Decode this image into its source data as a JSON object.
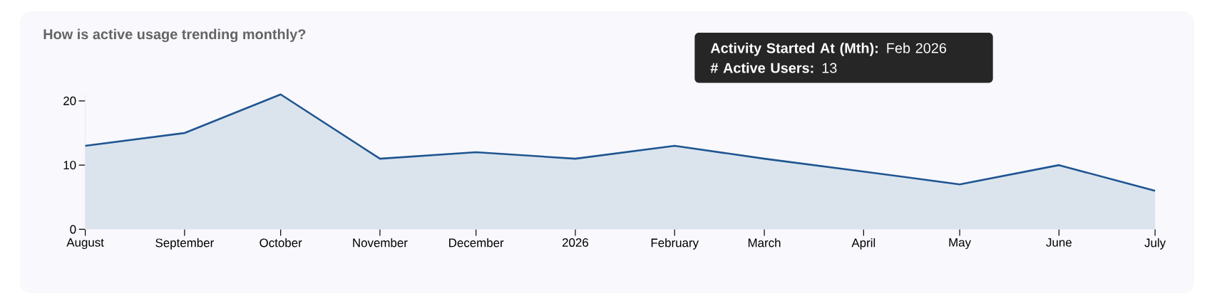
{
  "chart_data": {
    "type": "area",
    "title": "How is active usage trending monthly?",
    "x": [
      "2025-08",
      "2025-09",
      "2025-10",
      "2025-11",
      "2025-12",
      "2026-01",
      "2026-02",
      "2026-03",
      "2026-04",
      "2026-05",
      "2026-06",
      "2026-07"
    ],
    "series": [
      {
        "color": "#1f5591",
        "values": [
          13,
          15,
          21,
          11,
          12,
          11,
          13,
          11,
          9,
          7,
          10,
          6
        ]
      }
    ],
    "xlim": [
      "2025-08",
      "2026-07"
    ],
    "xticks": [
      {
        "value": "2025-08",
        "label": "August"
      },
      {
        "value": "2025-09",
        "label": "September"
      },
      {
        "value": "2025-10",
        "label": "October"
      },
      {
        "value": "2025-11",
        "label": "November"
      },
      {
        "value": "2025-12",
        "label": "December"
      },
      {
        "value": "2026-01",
        "label": "2026"
      },
      {
        "value": "2026-02",
        "label": "February"
      },
      {
        "value": "2026-03",
        "label": "March"
      },
      {
        "value": "2026-04",
        "label": "April"
      },
      {
        "value": "2026-05",
        "label": "May"
      },
      {
        "value": "2026-06",
        "label": "June"
      },
      {
        "value": "2026-07",
        "label": "July"
      }
    ],
    "ylim": [
      0,
      21
    ],
    "yticks": [
      0,
      10,
      20
    ],
    "grid": false,
    "marker": "none",
    "line_style": "solid",
    "annotations": [
      "**Activity Started At (Mth):** Feb 2026",
      "**# Active Users:** 13"
    ]
  }
}
